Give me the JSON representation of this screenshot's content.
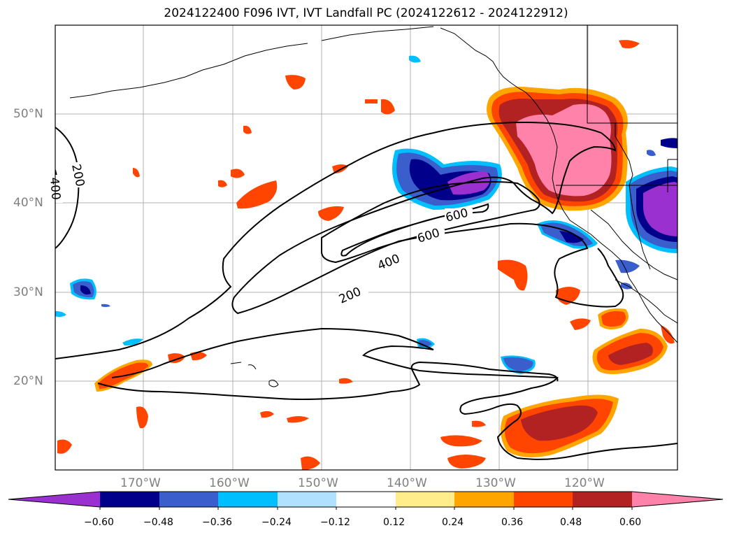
{
  "title": "2024122400 F096 IVT, IVT Landfall PC (2024122612 - 2024122912)",
  "map": {
    "lat_labels": [
      "50°N",
      "40°N",
      "30°N",
      "20°N"
    ],
    "lon_labels": [
      "170°W",
      "160°W",
      "150°W",
      "140°W",
      "130°W",
      "120°W"
    ],
    "contour_labels": [
      "200",
      "400",
      "600",
      "600",
      "400",
      "200"
    ]
  },
  "colorbar": {
    "ticks": [
      "−0.60",
      "−0.48",
      "−0.36",
      "−0.24",
      "−0.12",
      "0.12",
      "0.24",
      "0.36",
      "0.48",
      "0.60"
    ],
    "colors": [
      "#9b30d0",
      "#00008b",
      "#3a5fcd",
      "#00bfff",
      "#b0e2ff",
      "#ffffff",
      "#ffec8b",
      "#ffa500",
      "#ff4500",
      "#b22222",
      "#ff82ab",
      "#ff82ab"
    ]
  }
}
